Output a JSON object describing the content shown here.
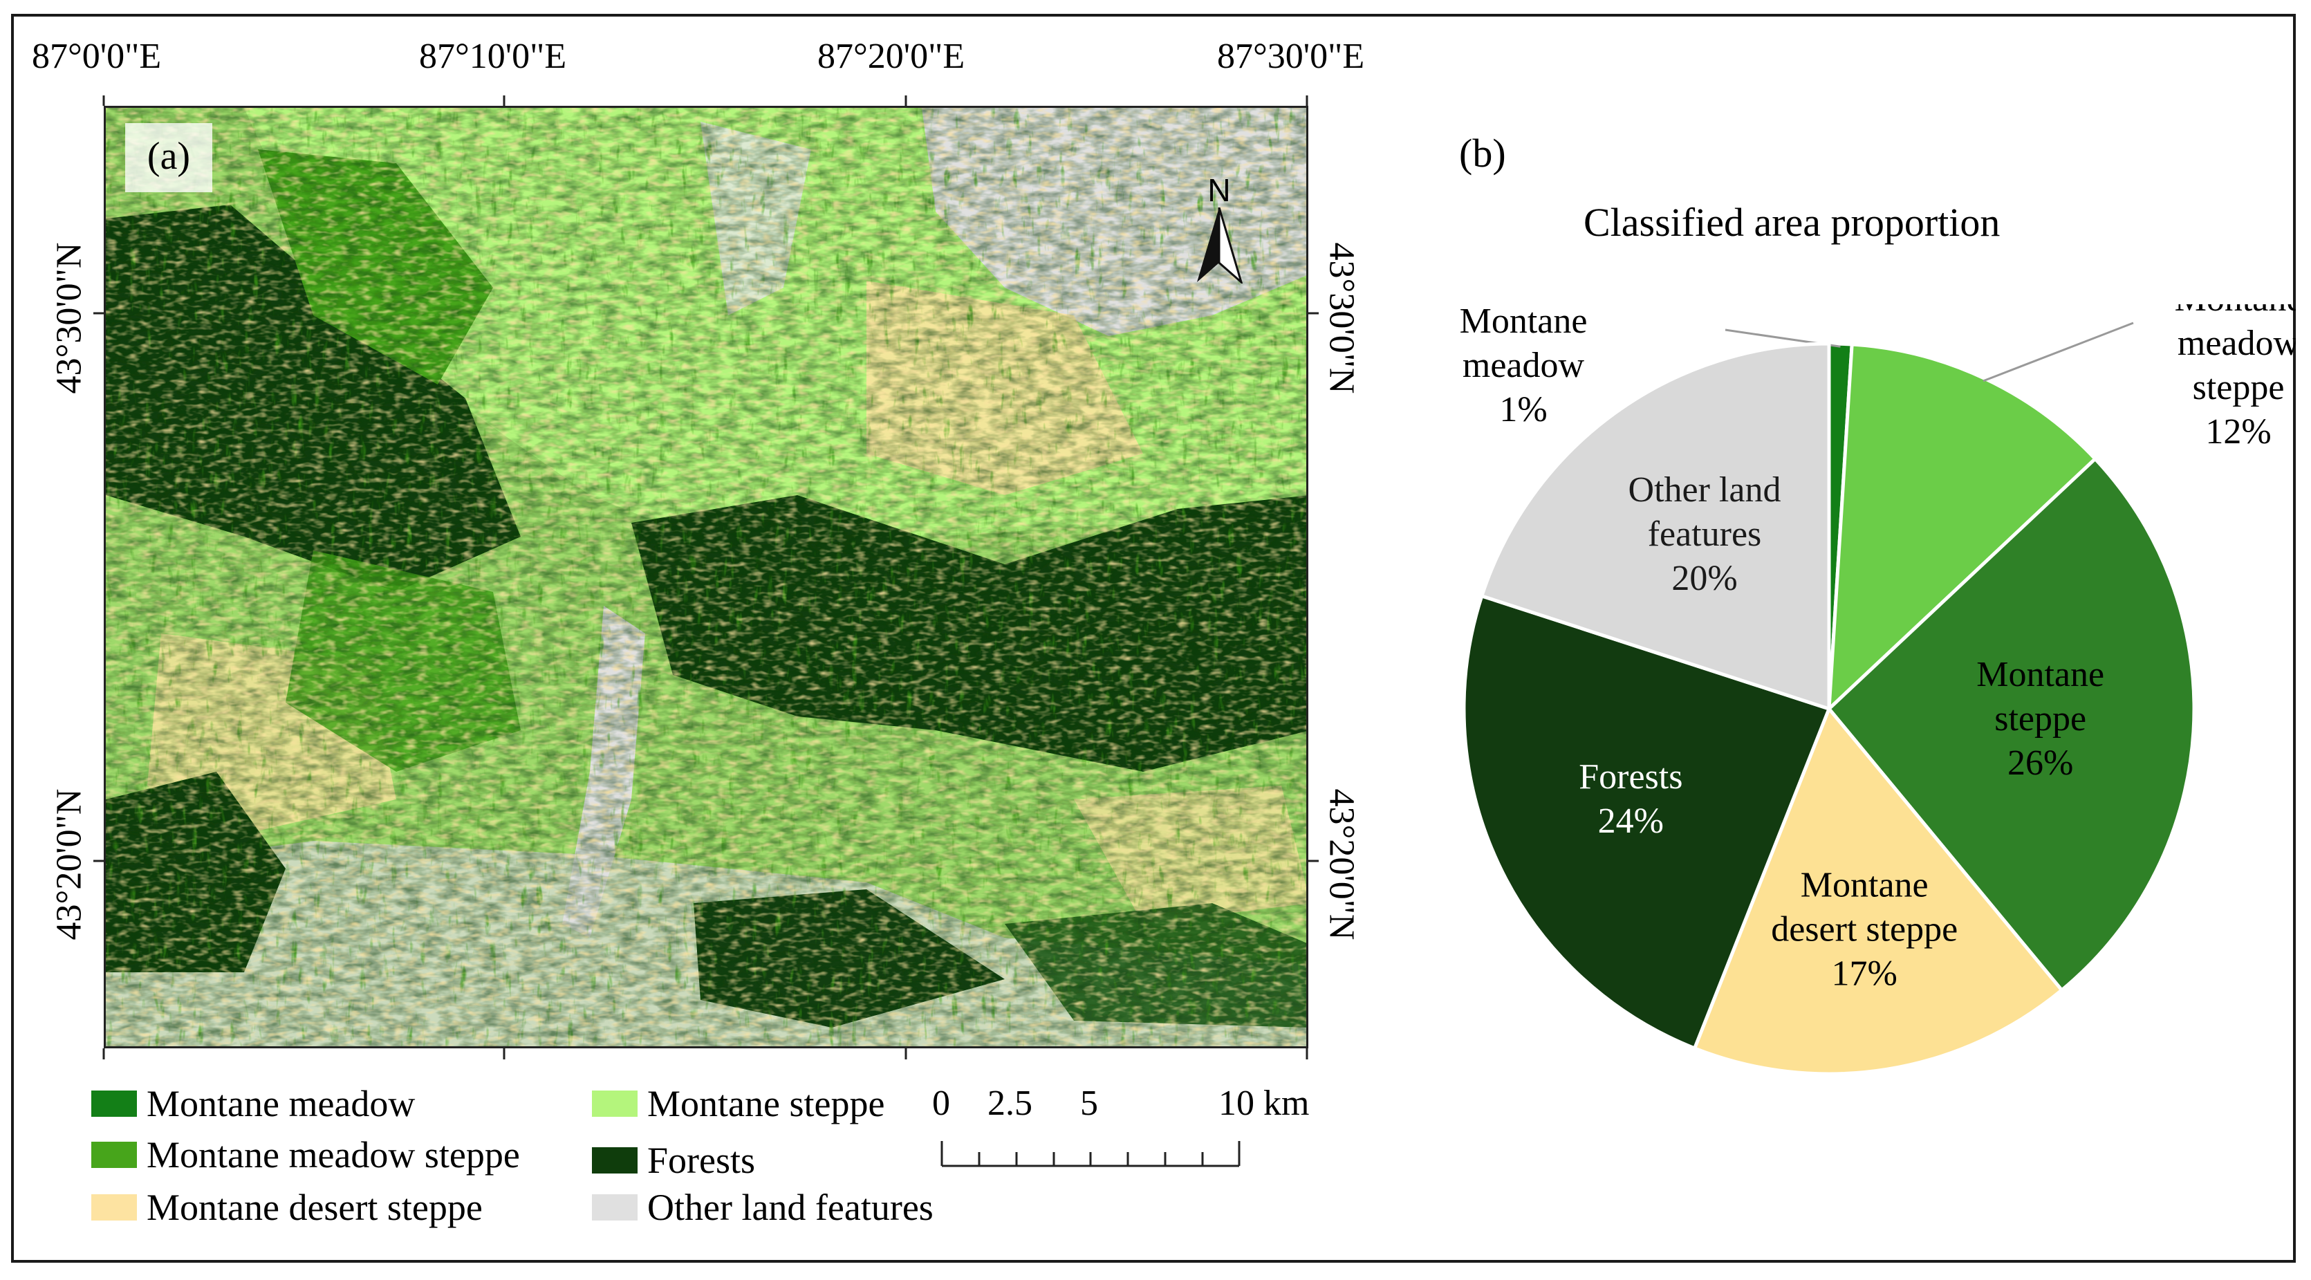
{
  "panel_a_label": "(a)",
  "panel_b_label": "(b)",
  "map": {
    "lon_labels": [
      "87°0'0\"E",
      "87°10'0\"E",
      "87°20'0\"E",
      "87°30'0\"E"
    ],
    "lat_labels": [
      "43°30'0\"N",
      "43°20'0\"N"
    ],
    "north_arrow_label": "N",
    "scale_bar": {
      "labels": [
        "0",
        "2.5",
        "5",
        "10 km"
      ]
    }
  },
  "legend": [
    {
      "label": "Montane meadow",
      "color": "#137f17"
    },
    {
      "label": "Montane steppe",
      "color": "#b4f57c"
    },
    {
      "label": "Montane meadow steppe",
      "color": "#47a51b"
    },
    {
      "label": "Forests",
      "color": "#0f3d0c"
    },
    {
      "label": "Montane desert steppe",
      "color": "#fde3a1"
    },
    {
      "label": "Other land features",
      "color": "#e0e0e0"
    }
  ],
  "chart_data": {
    "type": "pie",
    "title": "Classified area proportion",
    "slices": [
      {
        "name_lines": [
          "Montane",
          "meadow"
        ],
        "value": 1,
        "label": "1%",
        "color": "#137f17"
      },
      {
        "name_lines": [
          "Montane",
          "meadow",
          "steppe"
        ],
        "value": 12,
        "label": "12%",
        "color": "#6bcd48"
      },
      {
        "name_lines": [
          "Montane",
          "steppe"
        ],
        "value": 26,
        "label": "26%",
        "color": "#2f8127"
      },
      {
        "name_lines": [
          "Montane",
          "desert steppe"
        ],
        "value": 17,
        "label": "17%",
        "color": "#fde194"
      },
      {
        "name_lines": [
          "Forests"
        ],
        "value": 24,
        "label": "24%",
        "color": "#123b10"
      },
      {
        "name_lines": [
          "Other land",
          "features"
        ],
        "value": 20,
        "label": "20%",
        "color": "#d9d9d9"
      }
    ]
  }
}
